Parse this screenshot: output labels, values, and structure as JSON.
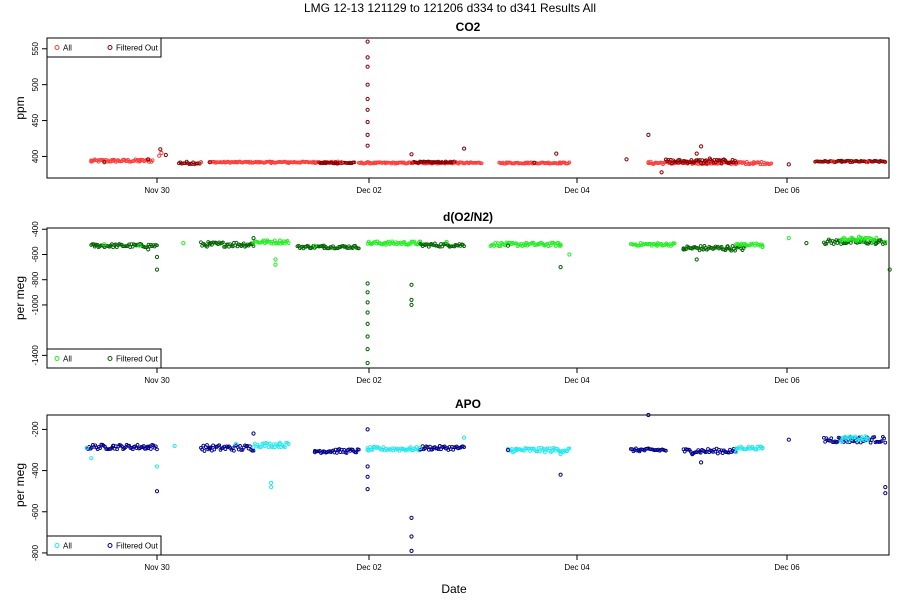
{
  "figure": {
    "main_title": "LMG   12-13    121129 to 121206    d334 to d341   Results All",
    "xlabel": "Date",
    "x_ticks": [
      "Nov 30",
      "Dec 02",
      "Dec 04",
      "Dec 06"
    ]
  },
  "colors": {
    "co2_all": "#ff3a3a",
    "co2_filtered": "#8b0000",
    "o2_all": "#22ee22",
    "o2_filtered": "#006400",
    "apo_all": "#22e8f0",
    "apo_filtered": "#00008b"
  },
  "chart_data": [
    {
      "type": "scatter",
      "title": "CO2",
      "xlabel": "",
      "ylabel": "ppm",
      "x_range": [
        "Nov 29",
        "Dec 06"
      ],
      "ylim": [
        370,
        565
      ],
      "y_ticks": [
        400,
        450,
        500,
        550
      ],
      "legend": {
        "position": "top-left",
        "entries": [
          "All",
          "Filtered Out"
        ]
      },
      "series": [
        {
          "name": "All",
          "values": [
            {
              "x": "Nov 29 09:00",
              "y": 393
            },
            {
              "x": "Nov 29 14:00",
              "y": 394
            },
            {
              "x": "Nov 29 20:00",
              "y": 395
            },
            {
              "x": "Nov 30 00:30",
              "y": 401
            },
            {
              "x": "Nov 30 01:00",
              "y": 405
            },
            {
              "x": "Nov 30 10:00",
              "y": 392
            },
            {
              "x": "Nov 30 18:00",
              "y": 392
            },
            {
              "x": "Dec 01 02:00",
              "y": 391
            },
            {
              "x": "Dec 01 06:00",
              "y": 391
            },
            {
              "x": "Dec 01 12:00",
              "y": 391
            },
            {
              "x": "Dec 01 18:00",
              "y": 392
            },
            {
              "x": "Dec 02 00:00",
              "y": 392
            },
            {
              "x": "Dec 02 10:00",
              "y": 391
            },
            {
              "x": "Dec 02 20:00",
              "y": 392
            },
            {
              "x": "Dec 03 12:00",
              "y": 391
            },
            {
              "x": "Dec 03 20:00",
              "y": 391
            },
            {
              "x": "Dec 04 16:00",
              "y": 391
            },
            {
              "x": "Dec 05 06:00",
              "y": 391
            },
            {
              "x": "Dec 05 16:00",
              "y": 392
            },
            {
              "x": "Dec 06 10:00",
              "y": 393
            },
            {
              "x": "Dec 06 18:00",
              "y": 392
            }
          ]
        },
        {
          "name": "Filtered Out",
          "values": [
            {
              "x": "Nov 29 12:00",
              "y": 392
            },
            {
              "x": "Nov 29 22:00",
              "y": 396
            },
            {
              "x": "Nov 30 00:45",
              "y": 410
            },
            {
              "x": "Nov 30 02:00",
              "y": 402
            },
            {
              "x": "Nov 30 12:00",
              "y": 392
            },
            {
              "x": "Dec 01 20:00",
              "y": 391
            },
            {
              "x": "Dec 02 00:00",
              "y": 560
            },
            {
              "x": "Dec 02 00:00",
              "y": 538
            },
            {
              "x": "Dec 02 00:00",
              "y": 525
            },
            {
              "x": "Dec 02 00:00",
              "y": 500
            },
            {
              "x": "Dec 02 00:00",
              "y": 480
            },
            {
              "x": "Dec 02 00:00",
              "y": 465
            },
            {
              "x": "Dec 02 00:00",
              "y": 448
            },
            {
              "x": "Dec 02 00:00",
              "y": 430
            },
            {
              "x": "Dec 02 00:00",
              "y": 415
            },
            {
              "x": "Dec 02 10:00",
              "y": 403
            },
            {
              "x": "Dec 02 22:00",
              "y": 411
            },
            {
              "x": "Dec 03 14:00",
              "y": 391
            },
            {
              "x": "Dec 03 19:00",
              "y": 404
            },
            {
              "x": "Dec 04 11:00",
              "y": 396
            },
            {
              "x": "Dec 04 16:00",
              "y": 430
            },
            {
              "x": "Dec 04 19:00",
              "y": 378
            },
            {
              "x": "Dec 05 03:00",
              "y": 404
            },
            {
              "x": "Dec 05 04:00",
              "y": 414
            },
            {
              "x": "Dec 05 06:00",
              "y": 397
            },
            {
              "x": "Dec 06 00:00",
              "y": 389
            },
            {
              "x": "Dec 06 12:00",
              "y": 394
            }
          ]
        }
      ]
    },
    {
      "type": "scatter",
      "title": "d(O2/N2)",
      "xlabel": "",
      "ylabel": "per meg",
      "x_range": [
        "Nov 29",
        "Dec 06"
      ],
      "ylim": [
        -1500,
        -390
      ],
      "y_ticks": [
        -1400,
        -1000,
        -800,
        -600,
        -400
      ],
      "legend": {
        "position": "bottom-left",
        "entries": [
          "All",
          "Filtered Out"
        ]
      },
      "series": [
        {
          "name": "All",
          "values": [
            {
              "x": "Nov 29 12:00",
              "y": -520
            },
            {
              "x": "Nov 29 20:00",
              "y": -530
            },
            {
              "x": "Nov 30 06:00",
              "y": -510
            },
            {
              "x": "Dec 01 01:00",
              "y": -500
            },
            {
              "x": "Dec 01 03:00",
              "y": -640
            },
            {
              "x": "Dec 01 03:00",
              "y": -680
            },
            {
              "x": "Dec 01 12:00",
              "y": -530
            },
            {
              "x": "Dec 02 04:00",
              "y": -510
            },
            {
              "x": "Dec 02 18:00",
              "y": -500
            },
            {
              "x": "Dec 03 12:00",
              "y": -520
            },
            {
              "x": "Dec 03 20:00",
              "y": -530
            },
            {
              "x": "Dec 03 22:00",
              "y": -600
            },
            {
              "x": "Dec 04 18:00",
              "y": -530
            },
            {
              "x": "Dec 05 14:00",
              "y": -520
            },
            {
              "x": "Dec 05 18:00",
              "y": -540
            },
            {
              "x": "Dec 06 00:00",
              "y": -470
            },
            {
              "x": "Dec 06 12:00",
              "y": -490
            },
            {
              "x": "Dec 06 16:00",
              "y": -460
            },
            {
              "x": "Dec 06 22:00",
              "y": -500
            }
          ]
        },
        {
          "name": "Filtered Out",
          "values": [
            {
              "x": "Nov 29 10:00",
              "y": -525
            },
            {
              "x": "Nov 29 22:00",
              "y": -560
            },
            {
              "x": "Nov 30 00:00",
              "y": -620
            },
            {
              "x": "Nov 30 12:00",
              "y": -520
            },
            {
              "x": "Nov 30 22:00",
              "y": -470
            },
            {
              "x": "Nov 30 00:00",
              "y": -720
            },
            {
              "x": "Dec 01 14:00",
              "y": -530
            },
            {
              "x": "Dec 02 00:00",
              "y": -830
            },
            {
              "x": "Dec 02 00:00",
              "y": -900
            },
            {
              "x": "Dec 02 00:00",
              "y": -980
            },
            {
              "x": "Dec 02 00:00",
              "y": -1060
            },
            {
              "x": "Dec 02 00:00",
              "y": -1150
            },
            {
              "x": "Dec 02 00:00",
              "y": -1250
            },
            {
              "x": "Dec 02 00:00",
              "y": -1350
            },
            {
              "x": "Dec 02 00:00",
              "y": -1460
            },
            {
              "x": "Dec 02 10:00",
              "y": -840
            },
            {
              "x": "Dec 02 10:00",
              "y": -960
            },
            {
              "x": "Dec 02 10:00",
              "y": -1000
            },
            {
              "x": "Dec 03 08:00",
              "y": -530
            },
            {
              "x": "Dec 03 20:00",
              "y": -700
            },
            {
              "x": "Dec 05 00:00",
              "y": -560
            },
            {
              "x": "Dec 05 03:00",
              "y": -640
            },
            {
              "x": "Dec 05 10:00",
              "y": -540
            },
            {
              "x": "Dec 06 04:00",
              "y": -510
            },
            {
              "x": "Dec 06 20:00",
              "y": -510
            },
            {
              "x": "Dec 06 23:00",
              "y": -720
            }
          ]
        }
      ]
    },
    {
      "type": "scatter",
      "title": "APO",
      "xlabel": "",
      "ylabel": "per meg",
      "x_range": [
        "Nov 29",
        "Dec 06"
      ],
      "ylim": [
        -810,
        -130
      ],
      "y_ticks": [
        -800,
        -600,
        -400,
        -200
      ],
      "legend": {
        "position": "bottom-left",
        "entries": [
          "All",
          "Filtered Out"
        ]
      },
      "series": [
        {
          "name": "All",
          "values": [
            {
              "x": "Nov 29 08:00",
              "y": -290
            },
            {
              "x": "Nov 29 09:00",
              "y": -340
            },
            {
              "x": "Nov 30 00:00",
              "y": -380
            },
            {
              "x": "Nov 30 04:00",
              "y": -280
            },
            {
              "x": "Nov 30 18:00",
              "y": -270
            },
            {
              "x": "Dec 01 02:00",
              "y": -460
            },
            {
              "x": "Dec 01 02:00",
              "y": -480
            },
            {
              "x": "Dec 01 04:00",
              "y": -270
            },
            {
              "x": "Dec 02 00:00",
              "y": -300
            },
            {
              "x": "Dec 02 12:00",
              "y": -290
            },
            {
              "x": "Dec 02 22:00",
              "y": -240
            },
            {
              "x": "Dec 03 10:00",
              "y": -300
            },
            {
              "x": "Dec 03 20:00",
              "y": -320
            },
            {
              "x": "Dec 04 14:00",
              "y": -300
            },
            {
              "x": "Dec 05 12:00",
              "y": -310
            },
            {
              "x": "Dec 05 18:00",
              "y": -290
            },
            {
              "x": "Dec 06 12:00",
              "y": -260
            },
            {
              "x": "Dec 06 18:00",
              "y": -250
            }
          ]
        },
        {
          "name": "Filtered Out",
          "values": [
            {
              "x": "Nov 29 14:00",
              "y": -280
            },
            {
              "x": "Nov 29 22:00",
              "y": -290
            },
            {
              "x": "Nov 30 00:00",
              "y": -500
            },
            {
              "x": "Nov 30 12:00",
              "y": -290
            },
            {
              "x": "Nov 30 22:00",
              "y": -220
            },
            {
              "x": "Dec 01 12:00",
              "y": -310
            },
            {
              "x": "Dec 02 00:00",
              "y": -200
            },
            {
              "x": "Dec 02 00:00",
              "y": -380
            },
            {
              "x": "Dec 02 00:00",
              "y": -430
            },
            {
              "x": "Dec 02 00:00",
              "y": -490
            },
            {
              "x": "Dec 02 10:00",
              "y": -630
            },
            {
              "x": "Dec 02 10:00",
              "y": -720
            },
            {
              "x": "Dec 02 10:00",
              "y": -790
            },
            {
              "x": "Dec 03 08:00",
              "y": -300
            },
            {
              "x": "Dec 03 20:00",
              "y": -420
            },
            {
              "x": "Dec 04 14:00",
              "y": -300
            },
            {
              "x": "Dec 04 16:00",
              "y": -130
            },
            {
              "x": "Dec 05 02:00",
              "y": -320
            },
            {
              "x": "Dec 05 04:00",
              "y": -360
            },
            {
              "x": "Dec 06 00:00",
              "y": -250
            },
            {
              "x": "Dec 06 22:00",
              "y": -480
            },
            {
              "x": "Dec 06 22:00",
              "y": -510
            }
          ]
        }
      ]
    }
  ]
}
